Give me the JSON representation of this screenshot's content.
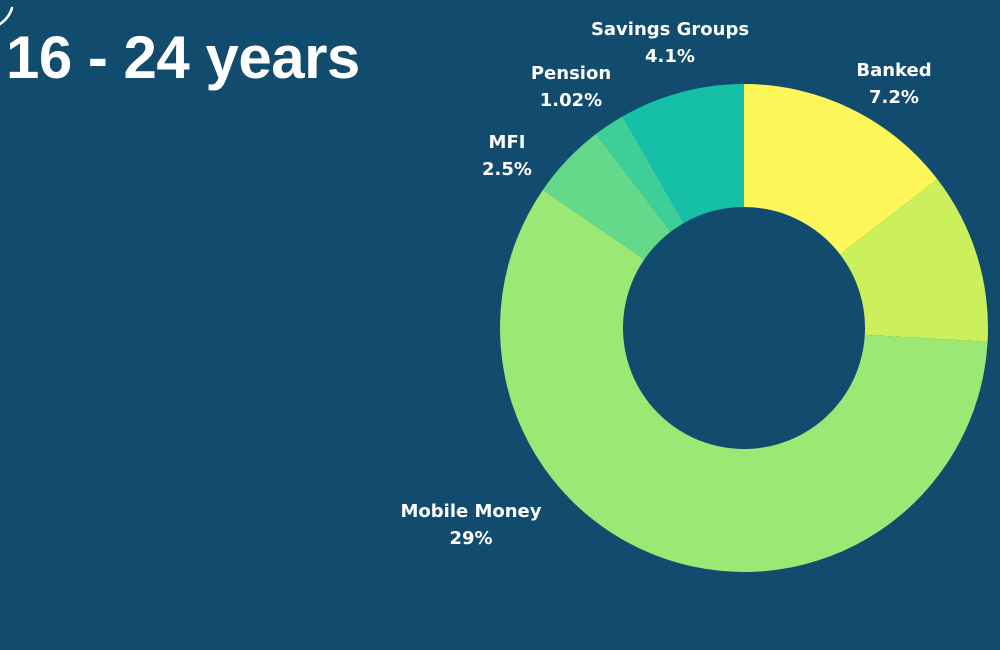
{
  "title": "16 - 24 years",
  "chart_data": {
    "type": "pie",
    "variant": "donut",
    "categories": [
      "Banked",
      "Mobile Money",
      "MFI",
      "Pension",
      "Savings Groups"
    ],
    "labels": [
      "Banked",
      "Mobile Money",
      "MFI",
      "Pension",
      "Savings Groups"
    ],
    "value_labels": [
      "7.2%",
      "29%",
      "2.5%",
      "1.02%",
      "4.1%"
    ],
    "values": [
      7.2,
      29,
      2.5,
      1.02,
      4.1
    ],
    "slices": [
      {
        "label": "Banked",
        "value_label": "7.2%",
        "value": 7.2,
        "color": "#fef75a"
      },
      {
        "label": "",
        "value_label": "",
        "value": 5.6,
        "color": "#cbf05c"
      },
      {
        "label": "Mobile Money",
        "value_label": "29%",
        "value": 29,
        "color": "#9be874"
      },
      {
        "label": "MFI",
        "value_label": "2.5%",
        "value": 2.5,
        "color": "#64d98a"
      },
      {
        "label": "Pension",
        "value_label": "1.02%",
        "value": 1.02,
        "color": "#3ecf98"
      },
      {
        "label": "Savings Groups",
        "value_label": "4.1%",
        "value": 4.1,
        "color": "#16c0a6"
      }
    ]
  },
  "colors": {
    "background": "#114b6e",
    "text": "#ffffff"
  }
}
